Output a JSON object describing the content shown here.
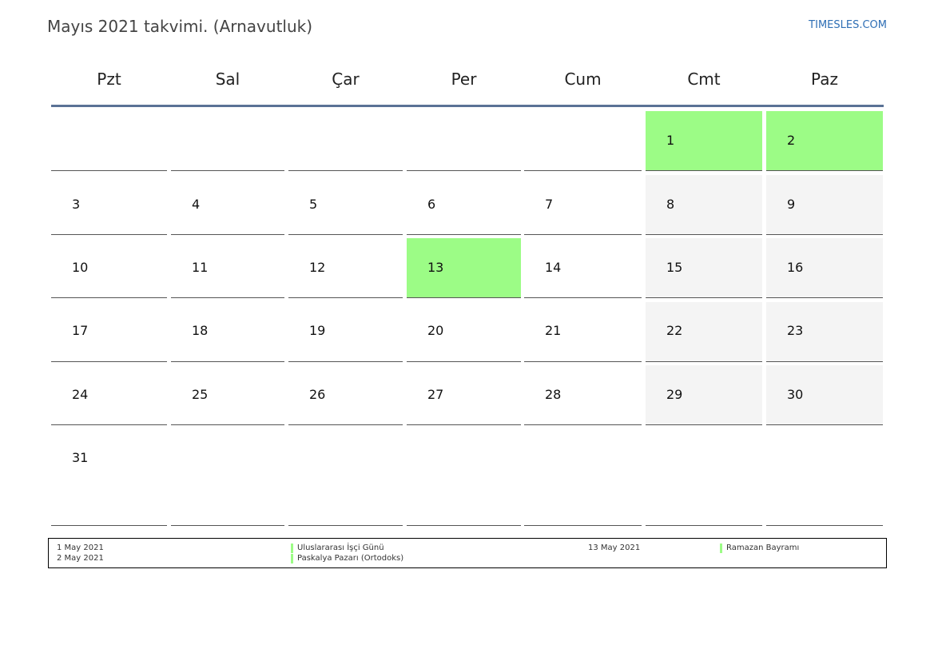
{
  "header": {
    "title": "Mayıs 2021 takvimi. (Arnavutluk)",
    "site": "TIMESLES.COM"
  },
  "weekdays": [
    "Pzt",
    "Sal",
    "Çar",
    "Per",
    "Cum",
    "Cmt",
    "Paz"
  ],
  "colors": {
    "holiday": "#9cfc86",
    "weekend": "#f4f4f4",
    "header_line": "#5a7295",
    "site_link": "#2f6fb5"
  },
  "weeks": [
    [
      "",
      "",
      "",
      "",
      "",
      "1",
      "2"
    ],
    [
      "3",
      "4",
      "5",
      "6",
      "7",
      "8",
      "9"
    ],
    [
      "10",
      "11",
      "12",
      "13",
      "14",
      "15",
      "16"
    ],
    [
      "17",
      "18",
      "19",
      "20",
      "21",
      "22",
      "23"
    ],
    [
      "24",
      "25",
      "26",
      "27",
      "28",
      "29",
      "30"
    ],
    [
      "31",
      "",
      "",
      "",
      "",
      "",
      ""
    ]
  ],
  "holiday_days": [
    "1",
    "2",
    "13"
  ],
  "legend": {
    "left": [
      {
        "date": "1 May 2021",
        "name": "Uluslararası İşçi Günü"
      },
      {
        "date": "2 May 2021",
        "name": "Paskalya Pazarı (Ortodoks)"
      }
    ],
    "right": [
      {
        "date": "13 May 2021",
        "name": "Ramazan Bayramı"
      }
    ]
  }
}
